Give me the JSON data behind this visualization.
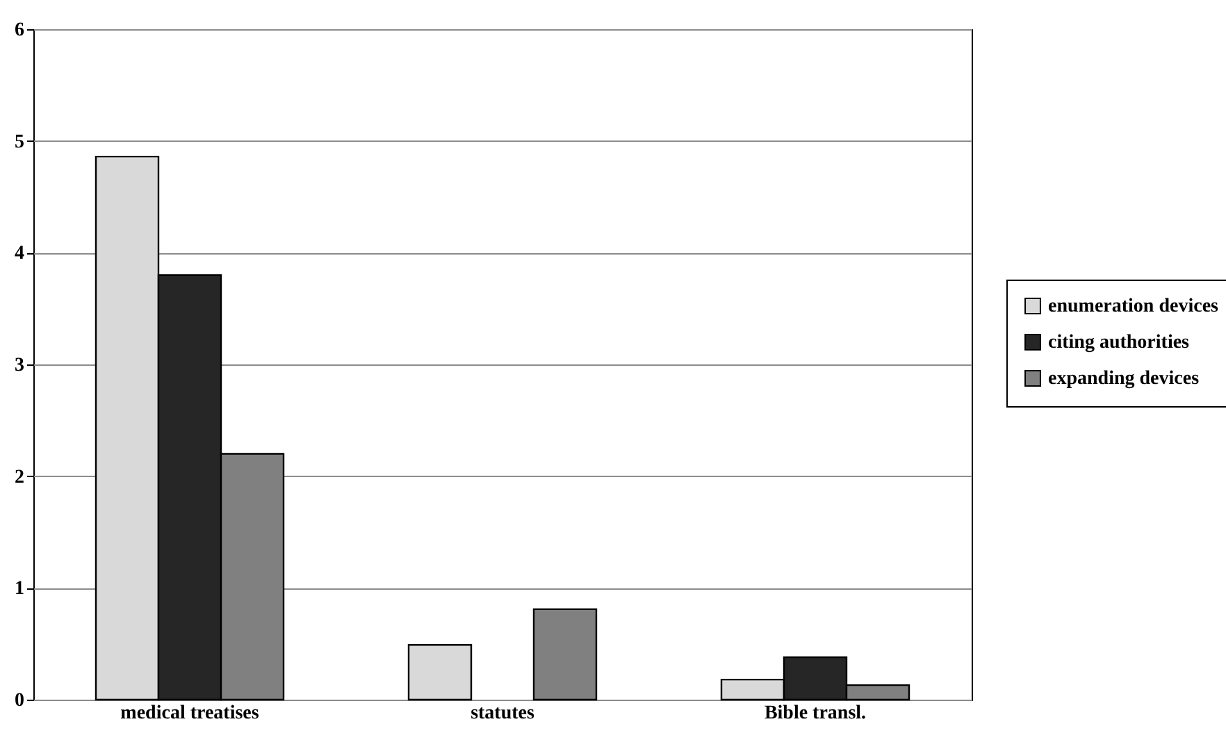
{
  "chart_data": {
    "type": "bar",
    "categories": [
      "medical treatises",
      "statutes",
      "Bible transl."
    ],
    "series": [
      {
        "name": "enumeration devices",
        "color": "#d9d9d9",
        "values": [
          4.86,
          0.49,
          0.18
        ]
      },
      {
        "name": "citing authorities",
        "color": "#262626",
        "values": [
          3.8,
          null,
          0.38
        ]
      },
      {
        "name": "expanding devices",
        "color": "#808080",
        "values": [
          2.2,
          0.81,
          0.13
        ]
      }
    ],
    "ylim": [
      0,
      6
    ],
    "yticks": [
      0,
      1,
      2,
      3,
      4,
      5,
      6
    ],
    "grid": "y",
    "legend": "right"
  }
}
